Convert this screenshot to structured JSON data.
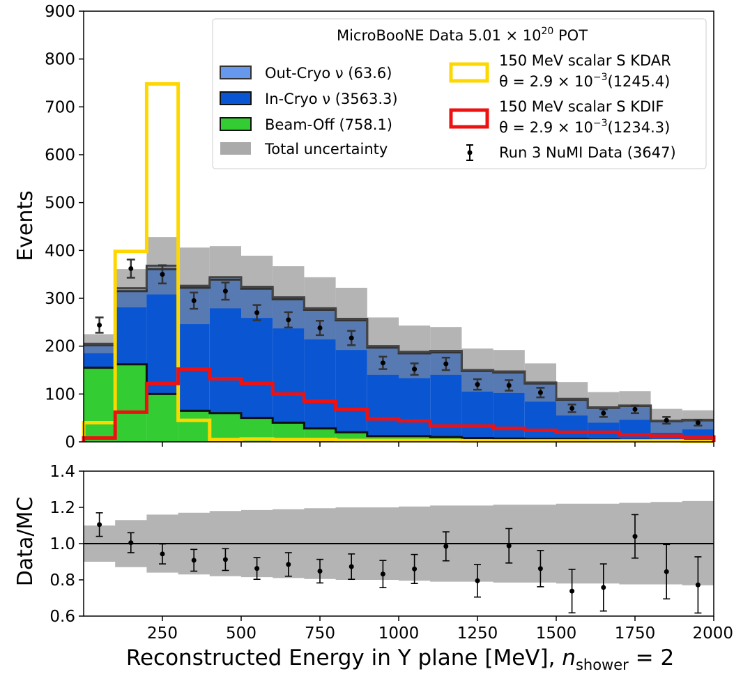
{
  "chart_data": [
    {
      "type": "stacked-histogram",
      "ylabel": "Events",
      "xlim": [
        0,
        2000
      ],
      "ylim": [
        0,
        900
      ],
      "yticks": [
        0,
        100,
        200,
        300,
        400,
        500,
        600,
        700,
        800,
        900
      ],
      "xticks": [
        250,
        500,
        750,
        1000,
        1250,
        1500,
        1750,
        2000
      ],
      "bin_edges": [
        0,
        100,
        200,
        300,
        400,
        500,
        600,
        700,
        800,
        900,
        1000,
        1100,
        1200,
        1300,
        1400,
        1500,
        1600,
        1700,
        1800,
        1900,
        2000
      ],
      "legend": {
        "title_prefix": "MicroBooNE Data 5.01 × 10",
        "title_exp": "20",
        "title_suffix": " POT",
        "out_cryo": "Out-Cryo ν (63.6)",
        "in_cryo": "In-Cryo ν (3563.3)",
        "beam_off": "Beam-Off (758.1)",
        "total_unc": "Total uncertainty",
        "kdar_line1": "150 MeV scalar S KDAR",
        "kdar_line2a": "θ = 2.9 × 10",
        "kdar_exp": "−3",
        "kdar_line2b": "(1245.4)",
        "kdif_line1": "150 MeV scalar S KDIF",
        "kdif_line2a": "θ = 2.9 × 10",
        "kdif_exp": "−3",
        "kdif_line2b": "(1234.3)",
        "data": "Run 3 NuMI Data (3647)"
      },
      "series": [
        {
          "name": "Beam-Off",
          "color": "#33cc33",
          "values": [
            155,
            162,
            100,
            65,
            60,
            50,
            40,
            28,
            20,
            12,
            12,
            10,
            8,
            7,
            6,
            6,
            5,
            4,
            3,
            3
          ]
        },
        {
          "name": "In-Cryo ν",
          "color": "#0a55d2",
          "values": [
            47,
            153,
            261,
            257,
            279,
            270,
            258,
            248,
            234,
            185,
            173,
            177,
            140,
            138,
            116,
            82,
            66,
            71,
            40,
            42
          ]
        },
        {
          "name": "Out-Cryo ν",
          "color": "#6699ee",
          "values": [
            3,
            6,
            7,
            4,
            5,
            4,
            4,
            3,
            3,
            3,
            3,
            3,
            2,
            2,
            2,
            2,
            1,
            1,
            1,
            1
          ]
        },
        {
          "name": "Total uncertainty",
          "color": "#aaaaaa",
          "values": [
            20,
            40,
            60,
            80,
            65,
            65,
            65,
            65,
            65,
            60,
            55,
            50,
            45,
            45,
            40,
            35,
            32,
            30,
            25,
            20
          ]
        }
      ],
      "signals": [
        {
          "name": "150 MeV scalar S KDAR",
          "color": "#ffd700",
          "values": [
            40,
            398,
            748,
            45,
            5,
            6,
            5,
            5,
            3,
            3,
            3,
            3,
            2,
            2,
            2,
            2,
            2,
            2,
            2,
            1
          ]
        },
        {
          "name": "150 MeV scalar S KDIF",
          "color": "#ee1111",
          "values": [
            8,
            62,
            122,
            152,
            132,
            122,
            100,
            85,
            68,
            48,
            44,
            33,
            33,
            28,
            24,
            20,
            20,
            15,
            12,
            10
          ]
        }
      ],
      "data_points": {
        "name": "Run 3 NuMI Data",
        "x": [
          50,
          150,
          250,
          350,
          450,
          550,
          650,
          750,
          850,
          950,
          1050,
          1150,
          1250,
          1350,
          1450,
          1550,
          1650,
          1750,
          1850,
          1950
        ],
        "y": [
          244,
          362,
          350,
          295,
          315,
          270,
          255,
          238,
          217,
          165,
          152,
          163,
          120,
          118,
          103,
          70,
          60,
          68,
          45,
          40
        ],
        "err": [
          16,
          19,
          19,
          17,
          18,
          16,
          16,
          15,
          15,
          13,
          12,
          13,
          11,
          11,
          10,
          8,
          8,
          8,
          7,
          6
        ]
      }
    },
    {
      "type": "ratio",
      "ylabel": "Data/MC",
      "xlabel_main": "Reconstructed Energy in Y plane [MeV], ",
      "xlabel_n": "n",
      "xlabel_sub": "shower",
      "xlabel_tail": " = 2",
      "xlim": [
        0,
        2000
      ],
      "ylim": [
        0.6,
        1.4
      ],
      "yticks": [
        0.6,
        0.8,
        1.0,
        1.2,
        1.4
      ],
      "xtick_labels": [
        "250",
        "500",
        "750",
        "1000",
        "1250",
        "1500",
        "1750",
        "2000"
      ],
      "unc_band_lower": [
        0.9,
        0.87,
        0.84,
        0.83,
        0.82,
        0.815,
        0.81,
        0.805,
        0.8,
        0.8,
        0.795,
        0.79,
        0.79,
        0.785,
        0.785,
        0.78,
        0.78,
        0.775,
        0.775,
        0.77
      ],
      "unc_band_upper": [
        1.1,
        1.13,
        1.16,
        1.17,
        1.18,
        1.185,
        1.19,
        1.195,
        1.2,
        1.2,
        1.205,
        1.21,
        1.21,
        1.215,
        1.215,
        1.22,
        1.22,
        1.225,
        1.23,
        1.235
      ],
      "points": {
        "x": [
          50,
          150,
          250,
          350,
          450,
          550,
          650,
          750,
          850,
          950,
          1050,
          1150,
          1250,
          1350,
          1450,
          1550,
          1650,
          1750,
          1850,
          1950
        ],
        "y": [
          1.105,
          1.005,
          0.943,
          0.908,
          0.912,
          0.863,
          0.885,
          0.848,
          0.873,
          0.832,
          0.86,
          0.985,
          0.795,
          0.988,
          0.862,
          0.738,
          0.758,
          1.04,
          0.845,
          0.772
        ],
        "err": [
          0.065,
          0.055,
          0.055,
          0.06,
          0.06,
          0.06,
          0.065,
          0.065,
          0.07,
          0.075,
          0.08,
          0.08,
          0.09,
          0.095,
          0.1,
          0.12,
          0.13,
          0.12,
          0.15,
          0.155
        ]
      }
    }
  ]
}
